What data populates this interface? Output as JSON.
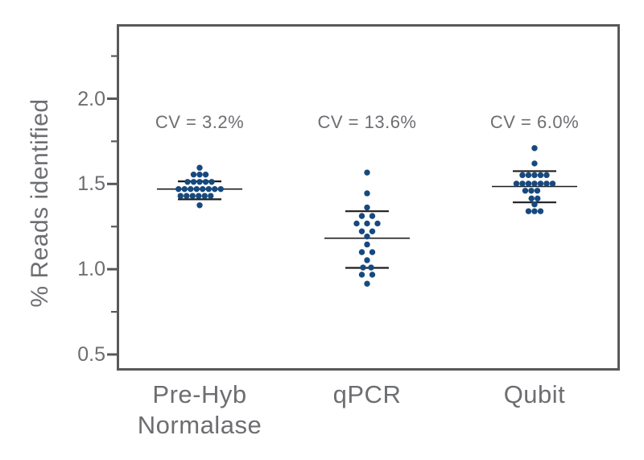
{
  "chart_data": {
    "type": "scatter",
    "subtype": "beeswarm-dot-plot",
    "title": "",
    "xlabel": "",
    "ylabel": "% Reads identified",
    "ylim": [
      0.41,
      2.44
    ],
    "grid": false,
    "legend": null,
    "y_axis": {
      "major_ticks": [
        {
          "value": 2.0,
          "label": "2.0"
        },
        {
          "value": 1.5,
          "label": "1.5"
        },
        {
          "value": 1.0,
          "label": "1.0"
        },
        {
          "value": 0.5,
          "label": "0.5"
        }
      ],
      "minor_ticks": [
        2.25,
        1.75,
        1.25,
        0.75
      ]
    },
    "categories": [
      "Pre-Hyb Normalase",
      "qPCR",
      "Qubit"
    ],
    "groups": [
      {
        "label_lines": [
          "Pre-Hyb",
          "Normalase"
        ],
        "cv_label": "CV = 3.2%",
        "mean": 1.47,
        "sd_upper": 1.515,
        "sd_lower": 1.41,
        "dot_spacing": 7.5,
        "rows": [
          {
            "v": 1.595,
            "n": 1
          },
          {
            "v": 1.555,
            "n": 3
          },
          {
            "v": 1.512,
            "n": 5
          },
          {
            "v": 1.47,
            "n": 8
          },
          {
            "v": 1.43,
            "n": 6,
            "dx": -5
          },
          {
            "v": 1.375,
            "n": 1
          }
        ]
      },
      {
        "label_lines": [
          "qPCR"
        ],
        "cv_label": "CV = 13.6%",
        "mean": 1.182,
        "sd_upper": 1.34,
        "sd_lower": 1.008,
        "dot_spacing": 13,
        "rows": [
          {
            "v": 1.567,
            "n": 1
          },
          {
            "v": 1.445,
            "n": 1
          },
          {
            "v": 1.362,
            "n": 1
          },
          {
            "v": 1.312,
            "n": 2
          },
          {
            "v": 1.268,
            "n": 3
          },
          {
            "v": 1.222,
            "n": 2
          },
          {
            "v": 1.192,
            "n": 1
          },
          {
            "v": 1.145,
            "n": 1
          },
          {
            "v": 1.1,
            "n": 2
          },
          {
            "v": 1.053,
            "n": 1
          },
          {
            "v": 1.01,
            "n": 2,
            "s": 10
          },
          {
            "v": 0.968,
            "n": 2
          },
          {
            "v": 0.915,
            "n": 1
          }
        ]
      },
      {
        "label_lines": [
          "Qubit"
        ],
        "cv_label": "CV = 6.0%",
        "mean": 1.485,
        "sd_upper": 1.575,
        "sd_lower": 1.392,
        "dot_spacing": 7.5,
        "rows": [
          {
            "v": 1.71,
            "n": 1
          },
          {
            "v": 1.62,
            "n": 1
          },
          {
            "v": 1.552,
            "n": 5
          },
          {
            "v": 1.502,
            "n": 7
          },
          {
            "v": 1.46,
            "n": 3,
            "dx": -4
          },
          {
            "v": 1.415,
            "n": 2
          },
          {
            "v": 1.38,
            "n": 1
          },
          {
            "v": 1.34,
            "n": 3
          }
        ]
      }
    ],
    "colors": {
      "dot": "#17497e",
      "stat_line": "#1d1d1f",
      "frame": "#58595b",
      "text": "#6d6e71",
      "background": "#ffffff"
    }
  }
}
